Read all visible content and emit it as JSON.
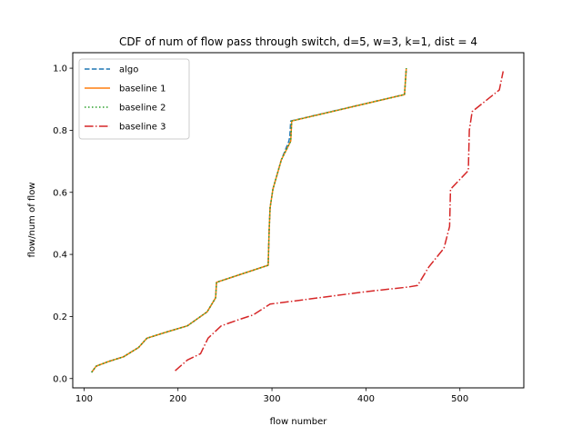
{
  "chart_data": {
    "type": "line",
    "title": "CDF of num of flow pass through switch, d=5, w=3, k=1, dist = 4",
    "xlabel": "flow number",
    "ylabel": "flow/num of flow",
    "xlim": [
      88,
      568
    ],
    "ylim": [
      -0.03,
      1.05
    ],
    "xticks": [
      100,
      200,
      300,
      400,
      500
    ],
    "yticks": [
      0.0,
      0.2,
      0.4,
      0.6,
      0.8,
      1.0
    ],
    "xtick_labels": [
      "100",
      "200",
      "300",
      "400",
      "500"
    ],
    "ytick_labels": [
      "0.0",
      "0.2",
      "0.4",
      "0.6",
      "0.8",
      "1.0"
    ],
    "grid": false,
    "legend_position": "upper-left",
    "series": [
      {
        "name": "algo",
        "color": "#1f77b4",
        "linestyle": "dashed",
        "points": [
          [
            108,
            0.02
          ],
          [
            113,
            0.04
          ],
          [
            126,
            0.055
          ],
          [
            142,
            0.07
          ],
          [
            158,
            0.1
          ],
          [
            167,
            0.13
          ],
          [
            188,
            0.15
          ],
          [
            210,
            0.17
          ],
          [
            231,
            0.215
          ],
          [
            240,
            0.26
          ],
          [
            241,
            0.31
          ],
          [
            296,
            0.365
          ],
          [
            297,
            0.48
          ],
          [
            298,
            0.55
          ],
          [
            301,
            0.61
          ],
          [
            310,
            0.705
          ],
          [
            318,
            0.765
          ],
          [
            319,
            0.78
          ],
          [
            320,
            0.83
          ],
          [
            441,
            0.915
          ],
          [
            443,
            1.0
          ]
        ]
      },
      {
        "name": "baseline 1",
        "color": "#ff7f0e",
        "linestyle": "solid",
        "points": [
          [
            108,
            0.02
          ],
          [
            113,
            0.04
          ],
          [
            126,
            0.055
          ],
          [
            142,
            0.07
          ],
          [
            158,
            0.1
          ],
          [
            167,
            0.13
          ],
          [
            188,
            0.15
          ],
          [
            210,
            0.17
          ],
          [
            231,
            0.215
          ],
          [
            240,
            0.26
          ],
          [
            241,
            0.31
          ],
          [
            296,
            0.365
          ],
          [
            297,
            0.48
          ],
          [
            298,
            0.55
          ],
          [
            301,
            0.61
          ],
          [
            310,
            0.705
          ],
          [
            320,
            0.765
          ],
          [
            321,
            0.83
          ],
          [
            441,
            0.915
          ],
          [
            443,
            1.0
          ]
        ]
      },
      {
        "name": "baseline 2",
        "color": "#2ca02c",
        "linestyle": "dotted",
        "points": [
          [
            108,
            0.02
          ],
          [
            113,
            0.04
          ],
          [
            126,
            0.055
          ],
          [
            142,
            0.07
          ],
          [
            158,
            0.1
          ],
          [
            167,
            0.13
          ],
          [
            188,
            0.15
          ],
          [
            210,
            0.17
          ],
          [
            231,
            0.215
          ],
          [
            240,
            0.26
          ],
          [
            241,
            0.31
          ],
          [
            296,
            0.365
          ],
          [
            297,
            0.48
          ],
          [
            298,
            0.55
          ],
          [
            301,
            0.61
          ],
          [
            310,
            0.705
          ],
          [
            320,
            0.765
          ],
          [
            321,
            0.83
          ],
          [
            441,
            0.915
          ],
          [
            443,
            1.0
          ]
        ]
      },
      {
        "name": "baseline 3",
        "color": "#d62728",
        "linestyle": "dashdot",
        "points": [
          [
            197,
            0.025
          ],
          [
            210,
            0.06
          ],
          [
            224,
            0.08
          ],
          [
            232,
            0.13
          ],
          [
            246,
            0.17
          ],
          [
            265,
            0.19
          ],
          [
            280,
            0.205
          ],
          [
            298,
            0.24
          ],
          [
            400,
            0.28
          ],
          [
            445,
            0.295
          ],
          [
            455,
            0.3
          ],
          [
            467,
            0.36
          ],
          [
            483,
            0.42
          ],
          [
            489,
            0.49
          ],
          [
            490,
            0.61
          ],
          [
            509,
            0.67
          ],
          [
            510,
            0.8
          ],
          [
            513,
            0.86
          ],
          [
            542,
            0.93
          ],
          [
            546,
            0.99
          ]
        ]
      }
    ]
  }
}
